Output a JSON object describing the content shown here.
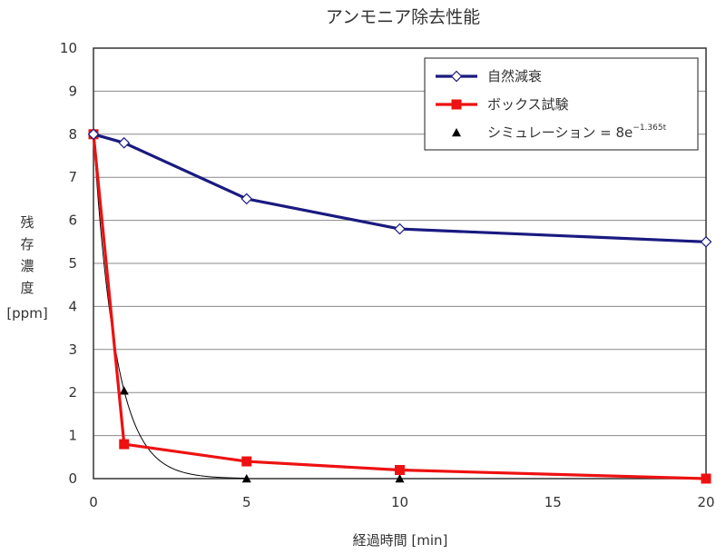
{
  "chart_data": {
    "type": "line",
    "title": "アンモニア除去性能",
    "xlabel": "経過時間 [min]",
    "ylabel_chars": [
      "残",
      "存",
      "濃",
      "度"
    ],
    "ylabel_unit": "[ppm]",
    "xlim": [
      0,
      20
    ],
    "ylim": [
      0,
      10
    ],
    "x_ticks": [
      0,
      5,
      10,
      15,
      20
    ],
    "y_ticks": [
      0,
      1,
      2,
      3,
      4,
      5,
      6,
      7,
      8,
      9,
      10
    ],
    "grid": "horizontal",
    "legend_placement": "top-right",
    "series": [
      {
        "name": "自然減衰",
        "color": "#1a1a80",
        "marker": "diamond-open",
        "x": [
          0,
          1,
          5,
          10,
          20
        ],
        "y": [
          8.0,
          7.8,
          6.5,
          5.8,
          5.5
        ]
      },
      {
        "name": "ボックス試験",
        "color": "#ee1111",
        "marker": "square",
        "x": [
          0,
          1,
          5,
          10,
          20
        ],
        "y": [
          8.0,
          0.8,
          0.4,
          0.2,
          0.0
        ]
      },
      {
        "name": "シミュレーション = 8e",
        "name_sup": "−1.365t",
        "color": "#000000",
        "marker": "triangle",
        "x": [
          0,
          1,
          5,
          10,
          20
        ],
        "y": [
          8.0,
          2.04,
          0.0,
          0.0,
          0.0
        ],
        "curve": {
          "a": 8,
          "k": 1.365,
          "x_range": [
            0,
            5
          ]
        }
      }
    ]
  }
}
